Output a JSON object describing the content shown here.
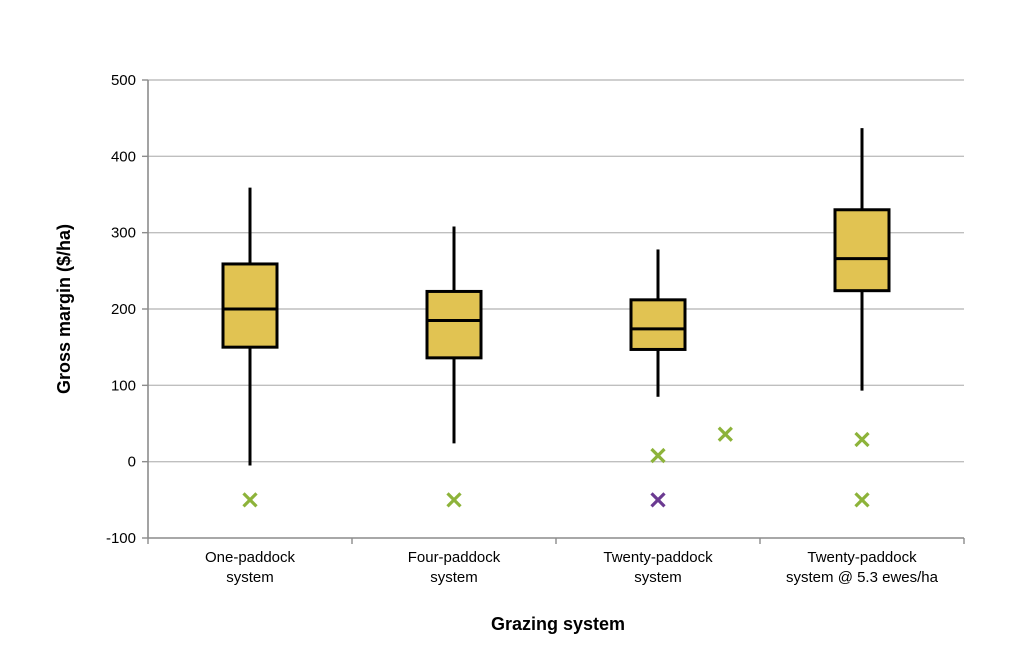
{
  "chart_data": {
    "type": "box",
    "ylabel": "Gross margin ($/ha)",
    "xlabel": "Grazing system",
    "ylim": [
      -100,
      500
    ],
    "yticks": [
      -100,
      0,
      100,
      200,
      300,
      400,
      500
    ],
    "grid": true,
    "categories": [
      [
        "One-paddock",
        "system"
      ],
      [
        "Four-paddock",
        "system"
      ],
      [
        "Twenty-paddock",
        "system"
      ],
      [
        "Twenty-paddock",
        "system @ 5.3 ewes/ha"
      ]
    ],
    "boxes": [
      {
        "min": -5,
        "q1": 150,
        "median": 200,
        "q3": 259,
        "max": 359
      },
      {
        "min": 24,
        "q1": 136,
        "median": 185,
        "q3": 223,
        "max": 308
      },
      {
        "min": 85,
        "q1": 147,
        "median": 174,
        "q3": 212,
        "max": 278
      },
      {
        "min": 93,
        "q1": 224,
        "median": 266,
        "q3": 330,
        "max": 437
      }
    ],
    "markers": [
      {
        "category": 0,
        "offset": 0,
        "y": -50,
        "color": "#8db33a"
      },
      {
        "category": 1,
        "offset": 0,
        "y": -50,
        "color": "#8db33a"
      },
      {
        "category": 2,
        "offset": 0,
        "y": -50,
        "color": "#6b3a91"
      },
      {
        "category": 2,
        "offset": 0,
        "y": 8,
        "color": "#8db33a"
      },
      {
        "category": 2,
        "offset": 0.33,
        "y": 36,
        "color": "#8db33a"
      },
      {
        "category": 3,
        "offset": 0,
        "y": 29,
        "color": "#8db33a"
      },
      {
        "category": 3,
        "offset": 0,
        "y": -50,
        "color": "#8db33a"
      }
    ],
    "colors": {
      "box_fill": "#e1c352",
      "box_stroke": "#000000",
      "grid": "#bfbfbf",
      "axis": "#8c8c8c"
    }
  }
}
